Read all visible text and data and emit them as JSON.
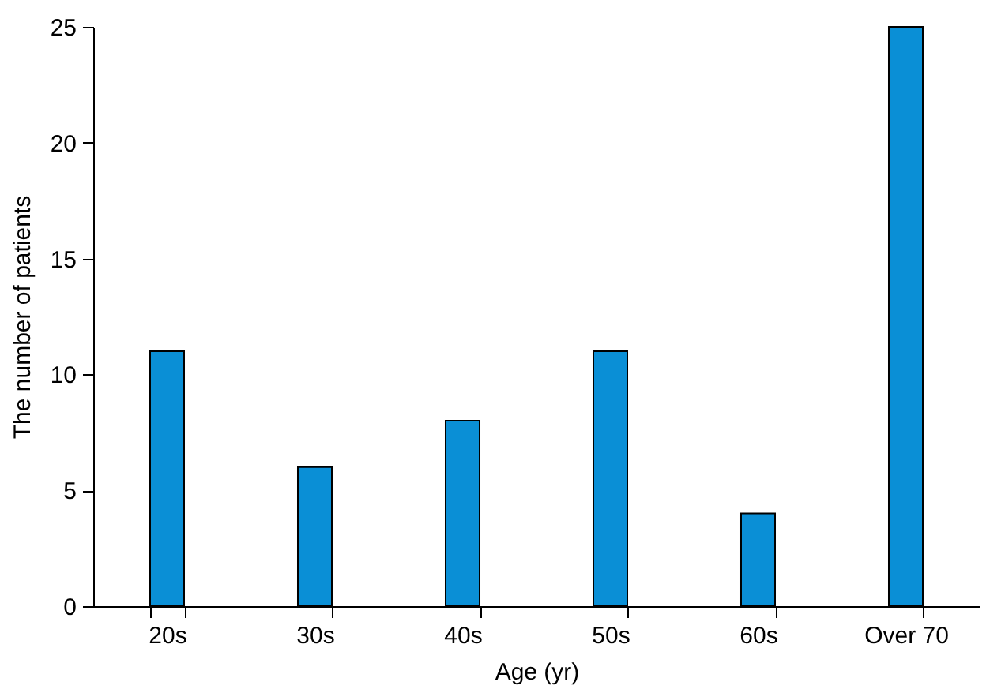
{
  "chart_data": {
    "type": "bar",
    "xlabel": "Age (yr)",
    "ylabel": "The number of patients",
    "categories": [
      "20s",
      "30s",
      "40s",
      "50s",
      "60s",
      "Over 70"
    ],
    "values": [
      11,
      6,
      8,
      11,
      4,
      25
    ],
    "color": "#0a8fd6",
    "ylim": [
      0,
      25
    ],
    "yticks": [
      0,
      5,
      10,
      15,
      20,
      25
    ],
    "grid": false
  }
}
